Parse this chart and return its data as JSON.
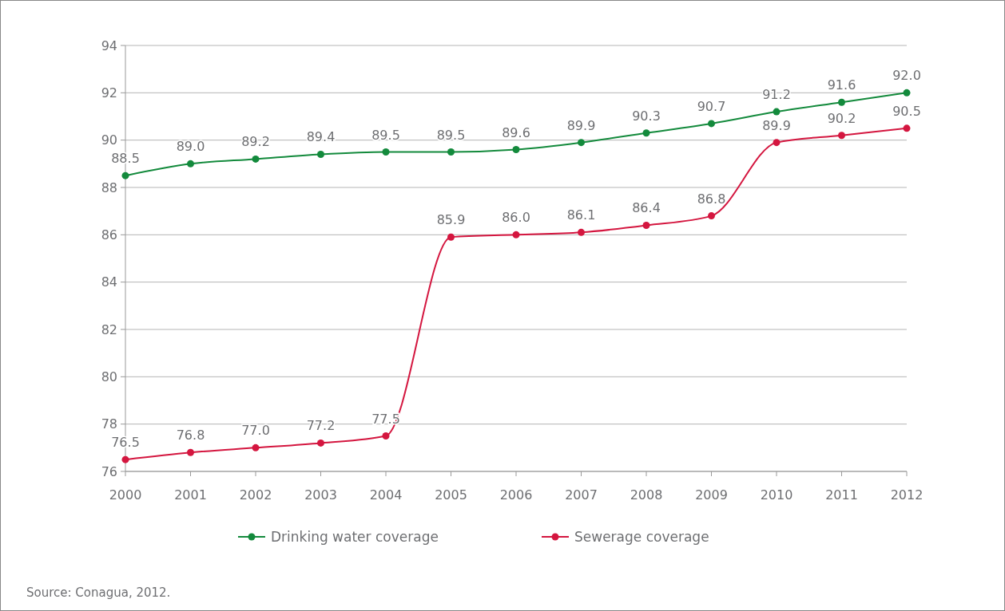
{
  "chart_data": {
    "type": "line",
    "categories": [
      "2000",
      "2001",
      "2002",
      "2003",
      "2004",
      "2005",
      "2006",
      "2007",
      "2008",
      "2009",
      "2010",
      "2011",
      "2012"
    ],
    "series": [
      {
        "name": "Drinking water coverage",
        "color": "#138a3c",
        "values": [
          88.5,
          89.0,
          89.2,
          89.4,
          89.5,
          89.5,
          89.6,
          89.9,
          90.3,
          90.7,
          91.2,
          91.6,
          92.0
        ],
        "value_labels": [
          "88.5",
          "89.0",
          "89.2",
          "89.4",
          "89.5",
          "89.5",
          "89.6",
          "89.9",
          "90.3",
          "90.7",
          "91.2",
          "91.6",
          "92.0"
        ]
      },
      {
        "name": "Sewerage coverage",
        "color": "#d4163f",
        "values": [
          76.5,
          76.8,
          77.0,
          77.2,
          77.5,
          85.9,
          86.0,
          86.1,
          86.4,
          86.8,
          89.9,
          90.2,
          90.5
        ],
        "value_labels": [
          "76.5",
          "76.8",
          "77.0",
          "77.2",
          "77.5",
          "85.9",
          "86.0",
          "86.1",
          "86.4",
          "86.8",
          "89.9",
          "90.2",
          "90.5"
        ]
      }
    ],
    "ylim": [
      76,
      94
    ],
    "yticks": [
      76,
      78,
      80,
      82,
      84,
      86,
      88,
      90,
      92,
      94
    ],
    "grid": "y",
    "legend": "bottom",
    "marker": "circle",
    "annotations": [
      "Source: Conagua, 2012."
    ]
  }
}
